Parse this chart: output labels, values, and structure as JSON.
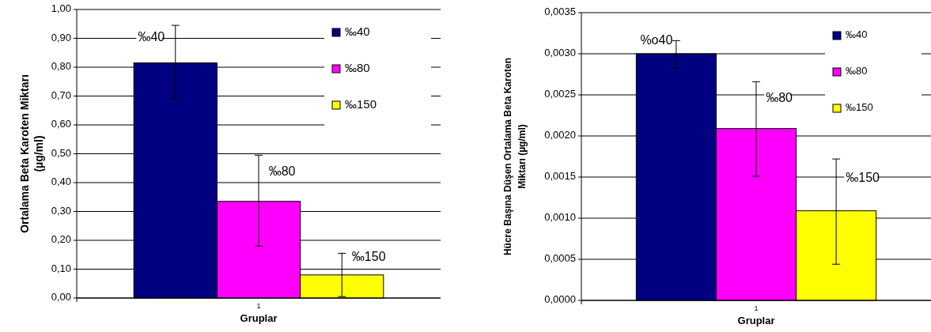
{
  "chart_data": [
    {
      "type": "bar",
      "categories": [
        "1"
      ],
      "xlabel": "Gruplar",
      "ylabel": "Ortalama Beta Karoten Miktarı (µg/ml)",
      "series": [
        {
          "name": "‰40",
          "color": "#000080",
          "values": [
            0.815
          ],
          "errors": [
            [
              0.69,
              0.945
            ]
          ]
        },
        {
          "name": "‰80",
          "color": "#ff00ff",
          "values": [
            0.335
          ],
          "errors": [
            [
              0.18,
              0.495
            ]
          ]
        },
        {
          "name": "‰150",
          "color": "#ffff00",
          "values": [
            0.08
          ],
          "errors": [
            [
              0.005,
              0.155
            ]
          ]
        }
      ],
      "annotations": [
        "‰40",
        "‰80",
        "‰150"
      ],
      "ylim": [
        0,
        1
      ],
      "yticks": [
        {
          "value": 0,
          "label": "0,00"
        },
        {
          "value": 0.1,
          "label": "0,10"
        },
        {
          "value": 0.2,
          "label": "0,20"
        },
        {
          "value": 0.3,
          "label": "0,30"
        },
        {
          "value": 0.4,
          "label": "0,40"
        },
        {
          "value": 0.5,
          "label": "0,50"
        },
        {
          "value": 0.6,
          "label": "0,60"
        },
        {
          "value": 0.7,
          "label": "0,70"
        },
        {
          "value": 0.8,
          "label": "0,80"
        },
        {
          "value": 0.9,
          "label": "0,90"
        },
        {
          "value": 1,
          "label": "1,00"
        }
      ],
      "grid": "y",
      "legend": "top right"
    },
    {
      "type": "bar",
      "categories": [
        "1"
      ],
      "xlabel": "Gruplar",
      "ylabel": "Hücre Başına Düşen Ortalama Beta Karoten Miktarı (µg/ml)",
      "series": [
        {
          "name": "‰40",
          "color": "#000080",
          "values": [
            0.003
          ],
          "errors": [
            [
              0.00283,
              0.00316
            ]
          ]
        },
        {
          "name": "‰80",
          "color": "#ff00ff",
          "values": [
            0.00209
          ],
          "errors": [
            [
              0.00151,
              0.00266
            ]
          ]
        },
        {
          "name": "‰150",
          "color": "#ffff00",
          "values": [
            0.00109
          ],
          "errors": [
            [
              0.00044,
              0.00172
            ]
          ]
        }
      ],
      "annotations": [
        "%o40",
        "‰80",
        "‰150"
      ],
      "ylim": [
        0,
        0.0035
      ],
      "yticks": [
        {
          "value": 0,
          "label": "0,0000"
        },
        {
          "value": 0.0005,
          "label": "0,0005"
        },
        {
          "value": 0.001,
          "label": "0,0010"
        },
        {
          "value": 0.0015,
          "label": "0,0015"
        },
        {
          "value": 0.002,
          "label": "0,0020"
        },
        {
          "value": 0.0025,
          "label": "0,0025"
        },
        {
          "value": 0.003,
          "label": "0,0030"
        },
        {
          "value": 0.0035,
          "label": "0,0035"
        }
      ],
      "grid": "y",
      "legend": "top right"
    }
  ]
}
